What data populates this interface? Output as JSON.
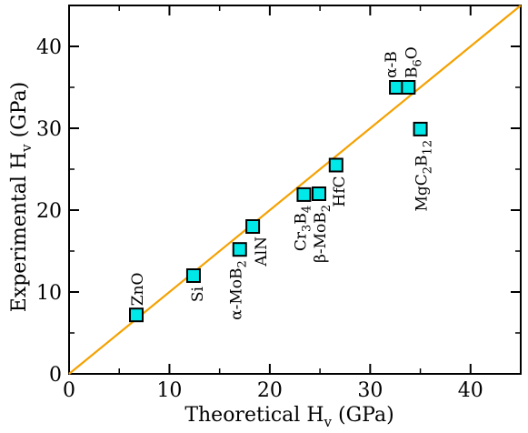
{
  "chart_data": {
    "type": "scatter",
    "title": "",
    "xlabel": "Theoretical H",
    "xlabel_sub": "v",
    "xlabel_unit": " (GPa)",
    "ylabel": "Experimental H",
    "ylabel_sub": "v",
    "ylabel_unit": " (GPa)",
    "xlim": [
      0,
      45
    ],
    "ylim": [
      0,
      45
    ],
    "xticks": [
      0,
      10,
      20,
      30,
      40
    ],
    "yticks": [
      0,
      10,
      20,
      30,
      40
    ],
    "grid": false,
    "reference_line": {
      "slope": 1,
      "intercept": 0,
      "color": "#f5a100"
    },
    "marker_color": "#00e8e8",
    "points": [
      {
        "x": 6.7,
        "y": 7.2,
        "label": [
          {
            "t": "ZnO"
          }
        ]
      },
      {
        "x": 12.4,
        "y": 12.0,
        "label": [
          {
            "t": "Si"
          }
        ]
      },
      {
        "x": 17.0,
        "y": 15.2,
        "label": [
          {
            "t": "α-MoB"
          },
          {
            "t": "2",
            "sub": true
          }
        ]
      },
      {
        "x": 18.3,
        "y": 18.0,
        "label": [
          {
            "t": "AlN"
          }
        ]
      },
      {
        "x": 23.4,
        "y": 21.9,
        "label": [
          {
            "t": "Cr"
          },
          {
            "t": "3",
            "sub": true
          },
          {
            "t": "B"
          },
          {
            "t": "4",
            "sub": true
          }
        ]
      },
      {
        "x": 24.9,
        "y": 22.0,
        "label": [
          {
            "t": "β-MoB"
          },
          {
            "t": "2",
            "sub": true
          }
        ]
      },
      {
        "x": 26.6,
        "y": 25.5,
        "label": [
          {
            "t": "HfC"
          }
        ]
      },
      {
        "x": 32.6,
        "y": 35.0,
        "label": [
          {
            "t": "α-B"
          }
        ]
      },
      {
        "x": 33.8,
        "y": 35.0,
        "label": [
          {
            "t": "B"
          },
          {
            "t": "6",
            "sub": true
          },
          {
            "t": "O"
          }
        ]
      },
      {
        "x": 35.0,
        "y": 29.9,
        "label": [
          {
            "t": "MgC"
          },
          {
            "t": "2",
            "sub": true
          },
          {
            "t": "B"
          },
          {
            "t": "12",
            "sub": true
          }
        ]
      }
    ]
  }
}
